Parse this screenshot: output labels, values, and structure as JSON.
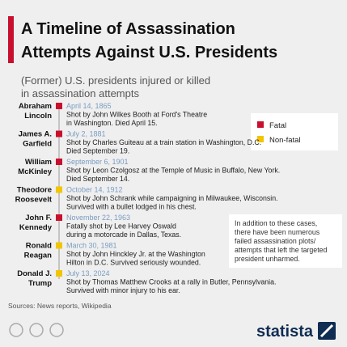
{
  "header": {
    "title": [
      "A Timeline of Assassination",
      "Attempts Against U.S. Presidents"
    ],
    "subtitle": [
      "(Former) U.S. presidents injured or killed",
      "in assassination attempts"
    ]
  },
  "legend": [
    {
      "label": "Fatal",
      "color": "#c8102e"
    },
    {
      "label": "Non-fatal",
      "color": "#f2c500"
    }
  ],
  "entries": [
    {
      "name": [
        "Abraham",
        "Lincoln"
      ],
      "date": "April 14, 1865",
      "description": [
        "Shot by John Wilkes Booth at Ford's Theatre",
        "in Washington. Died April 15."
      ],
      "legend": 0
    },
    {
      "name": [
        "James A.",
        "Garfield"
      ],
      "date": "July 2, 1881",
      "description": [
        "Shot by Charles Guiteau at a train station in Washington, D.C.",
        "Died September 19."
      ],
      "legend": 0
    },
    {
      "name": [
        "William",
        "McKinley"
      ],
      "date": "September 6, 1901",
      "description": [
        "Shot by Leon Czolgosz at the Temple of Music in Buffalo, New York.",
        "Died September 14."
      ],
      "legend": 0
    },
    {
      "name": [
        "Theodore",
        "Roosevelt"
      ],
      "date": "October 14, 1912",
      "description": [
        "Shot by John Schrank while campaigning in Milwaukee, Wisconsin.",
        "Survived with a bullet lodged in his chest."
      ],
      "legend": 1
    },
    {
      "name": [
        "John F.",
        "Kennedy"
      ],
      "date": "November 22, 1963",
      "description": [
        "Fatally shot by Lee Harvey Oswald",
        "during a motorcade in Dallas, Texas."
      ],
      "legend": 0
    },
    {
      "name": [
        "Ronald",
        "Reagan"
      ],
      "date": "March 30, 1981",
      "description": [
        "Shot by John Hinckley Jr. at the Washington",
        "Hilton in D.C. Survived seriously wounded."
      ],
      "legend": 1
    },
    {
      "name": [
        "Donald J.",
        "Trump"
      ],
      "date": "July 13, 2024",
      "description": [
        "Shot by Thomas Matthew Crooks at a rally in Butler, Pennsylvania.",
        "Survived with minor injury to his ear."
      ],
      "legend": 1
    }
  ],
  "note": [
    "In addition to these cases,",
    "there have been numerous",
    "failed assassination plots/",
    "attempts that left the targeted",
    "president unharmed."
  ],
  "source": "Sources: News reports, Wikipedia",
  "footer": {
    "brand": "statista"
  }
}
